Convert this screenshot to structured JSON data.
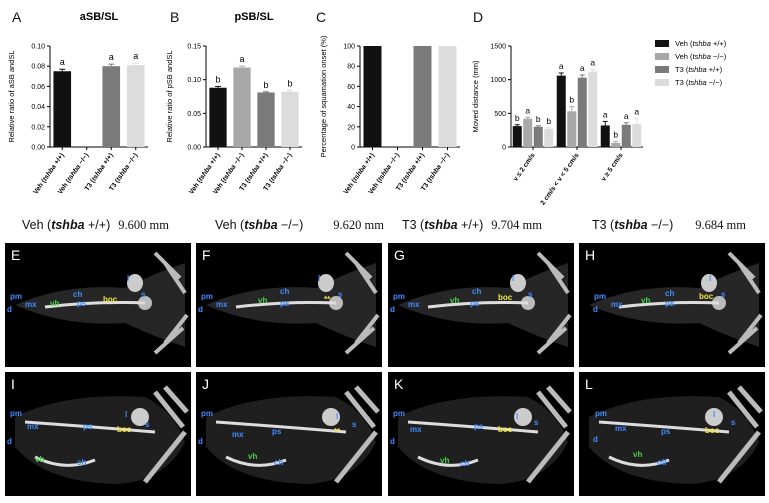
{
  "colors": {
    "veh_wt": "#111111",
    "veh_mut": "#a8a8a8",
    "t3_wt": "#7a7a7a",
    "t3_mut": "#dcdcdc"
  },
  "chart_data": [
    {
      "id": "A",
      "type": "bar",
      "title": "aSB/SL",
      "ylabel": "Relative ratio of aSB andSL",
      "categories": [
        "Veh (tshba +/+)",
        "Veh (tshba −/−)",
        "T3 (tshba +/+)",
        "T3 (tshba −/−)"
      ],
      "values": [
        0.075,
        0,
        0.08,
        0.081
      ],
      "errors": [
        0.002,
        0,
        0.002,
        0.002
      ],
      "letters": [
        "a",
        "",
        "a",
        "a"
      ],
      "ylim": [
        0,
        0.1
      ],
      "yticks": [
        "0.00",
        "0.02",
        "0.04",
        "0.06",
        "0.08",
        "0.10"
      ]
    },
    {
      "id": "B",
      "type": "bar",
      "title": "pSB/SL",
      "ylabel": "Relative ratio of pSB andSL",
      "categories": [
        "Veh (tshba +/+)",
        "Veh (tshba −/−)",
        "T3 (tshba +/+)",
        "T3 (tshba −/−)"
      ],
      "values": [
        0.088,
        0.118,
        0.081,
        0.082
      ],
      "errors": [
        0.002,
        0.002,
        0.001,
        0.002
      ],
      "letters": [
        "b",
        "a",
        "b",
        "b"
      ],
      "ylim": [
        0,
        0.15
      ],
      "yticks": [
        "0.00",
        "0.05",
        "0.10",
        "0.15"
      ]
    },
    {
      "id": "C",
      "type": "bar",
      "title": "",
      "ylabel": "Percentage of squamation onset (%)",
      "categories": [
        "Veh (tshba +/+)",
        "Veh (tshba −/−)",
        "T3 (tshba +/+)",
        "T3 (tshba −/−)"
      ],
      "values": [
        100,
        0,
        100,
        100
      ],
      "errors": [
        0,
        0,
        0,
        0
      ],
      "letters": [
        "",
        "",
        "",
        ""
      ],
      "ylim": [
        0,
        100
      ],
      "yticks": [
        "0",
        "20",
        "40",
        "60",
        "80",
        "100"
      ]
    },
    {
      "id": "D",
      "type": "bar",
      "title": "",
      "ylabel": "Moved distance (mm)",
      "categories": [
        "v ≤ 2 cm/s",
        "2 cm/s < v < 5 cm/s",
        "v ≥ 5 cm/s"
      ],
      "series": [
        {
          "name": "Veh (tshba +/+)",
          "values": [
            310,
            1060,
            320
          ],
          "errors": [
            20,
            40,
            60
          ],
          "letters": [
            "b",
            "a",
            "a"
          ]
        },
        {
          "name": "Veh (tshba −/−)",
          "values": [
            420,
            530,
            60
          ],
          "errors": [
            20,
            70,
            20
          ],
          "letters": [
            "a",
            "b",
            "b"
          ]
        },
        {
          "name": "T3 (tshba +/+)",
          "values": [
            300,
            1030,
            330
          ],
          "errors": [
            15,
            40,
            30
          ],
          "letters": [
            "b",
            "a",
            "a"
          ]
        },
        {
          "name": "T3 (tshba −/−)",
          "values": [
            270,
            1120,
            340
          ],
          "errors": [
            15,
            30,
            80
          ],
          "letters": [
            "b",
            "a",
            "a"
          ]
        }
      ],
      "ylim": [
        0,
        1500
      ],
      "yticks": [
        "0",
        "500",
        "1000",
        "1500"
      ],
      "legend": [
        "Veh (tshba +/+)",
        "Veh (tshba −/−)",
        "T3 (tshba +/+)",
        "T3 (tshba −/−)"
      ]
    }
  ],
  "panel_letters": [
    "A",
    "B",
    "C",
    "D"
  ],
  "measurements": [
    {
      "geno_pre": "Veh (",
      "geno_it": "tshba",
      "geno_post": " +/+)",
      "value": "9.600 mm"
    },
    {
      "geno_pre": "Veh (",
      "geno_it": "tshba",
      "geno_post": " −/−)",
      "value": "9.620 mm"
    },
    {
      "geno_pre": "T3 (",
      "geno_it": "tshba",
      "geno_post": " +/+)",
      "value": "9.704 mm"
    },
    {
      "geno_pre": "T3 (",
      "geno_it": "tshba",
      "geno_post": " −/−)",
      "value": "9.684 mm"
    }
  ],
  "images": [
    {
      "letter": "E",
      "labels": [
        [
          "pm",
          "blue",
          5,
          49
        ],
        [
          "d",
          "blue",
          2,
          62
        ],
        [
          "mx",
          "blue",
          20,
          57
        ],
        [
          "vh",
          "green",
          45,
          56
        ],
        [
          "ch",
          "blue",
          68,
          47
        ],
        [
          "ps",
          "blue",
          72,
          56
        ],
        [
          "boc",
          "yellow",
          98,
          52
        ],
        [
          "l",
          "blue",
          122,
          31
        ],
        [
          "s",
          "blue",
          136,
          47
        ]
      ]
    },
    {
      "letter": "F",
      "labels": [
        [
          "pm",
          "blue",
          5,
          49
        ],
        [
          "d",
          "blue",
          2,
          62
        ],
        [
          "mx",
          "blue",
          20,
          57
        ],
        [
          "vh",
          "green",
          62,
          53
        ],
        [
          "ch",
          "blue",
          84,
          44
        ],
        [
          "ps",
          "blue",
          84,
          56
        ],
        [
          "**",
          "yellow",
          128,
          52
        ],
        [
          "l",
          "blue",
          122,
          31
        ],
        [
          "s",
          "blue",
          142,
          47
        ]
      ]
    },
    {
      "letter": "G",
      "labels": [
        [
          "pm",
          "blue",
          5,
          49
        ],
        [
          "d",
          "blue",
          2,
          62
        ],
        [
          "mx",
          "blue",
          20,
          57
        ],
        [
          "vh",
          "green",
          62,
          53
        ],
        [
          "ch",
          "blue",
          84,
          44
        ],
        [
          "ps",
          "blue",
          82,
          56
        ],
        [
          "boc",
          "yellow",
          110,
          50
        ],
        [
          "l",
          "blue",
          124,
          31
        ],
        [
          "s",
          "blue",
          140,
          47
        ]
      ]
    },
    {
      "letter": "H",
      "labels": [
        [
          "pm",
          "blue",
          15,
          49
        ],
        [
          "d",
          "blue",
          14,
          62
        ],
        [
          "mx",
          "blue",
          32,
          57
        ],
        [
          "vh",
          "green",
          62,
          53
        ],
        [
          "ch",
          "blue",
          86,
          46
        ],
        [
          "ps",
          "blue",
          86,
          56
        ],
        [
          "boc",
          "yellow",
          120,
          49
        ],
        [
          "l",
          "blue",
          130,
          31
        ],
        [
          "s",
          "blue",
          142,
          47
        ]
      ]
    },
    {
      "letter": "I",
      "labels": [
        [
          "pm",
          "blue",
          5,
          37
        ],
        [
          "d",
          "blue",
          2,
          65
        ],
        [
          "mx",
          "blue",
          22,
          50
        ],
        [
          "ps",
          "blue",
          78,
          50
        ],
        [
          "boc",
          "yellow",
          112,
          53
        ],
        [
          "vh",
          "green",
          30,
          83
        ],
        [
          "ch",
          "blue",
          72,
          86
        ],
        [
          "l",
          "blue",
          120,
          38
        ],
        [
          "s",
          "blue",
          140,
          48
        ]
      ]
    },
    {
      "letter": "J",
      "labels": [
        [
          "pm",
          "blue",
          5,
          37
        ],
        [
          "d",
          "blue",
          2,
          65
        ],
        [
          "mx",
          "blue",
          36,
          58
        ],
        [
          "ps",
          "blue",
          76,
          55
        ],
        [
          "**",
          "yellow",
          138,
          55
        ],
        [
          "vh",
          "green",
          52,
          80
        ],
        [
          "ch",
          "blue",
          78,
          86
        ],
        [
          "l",
          "blue",
          140,
          40
        ],
        [
          "s",
          "blue",
          156,
          48
        ]
      ]
    },
    {
      "letter": "K",
      "labels": [
        [
          "pm",
          "blue",
          5,
          37
        ],
        [
          "d",
          "blue",
          2,
          65
        ],
        [
          "mx",
          "blue",
          22,
          53
        ],
        [
          "ps",
          "blue",
          86,
          50
        ],
        [
          "boc",
          "yellow",
          110,
          53
        ],
        [
          "vh",
          "green",
          52,
          84
        ],
        [
          "ch",
          "blue",
          72,
          87
        ],
        [
          "l",
          "blue",
          128,
          40
        ],
        [
          "s",
          "blue",
          146,
          46
        ]
      ]
    },
    {
      "letter": "L",
      "labels": [
        [
          "pm",
          "blue",
          16,
          37
        ],
        [
          "d",
          "blue",
          14,
          63
        ],
        [
          "mx",
          "blue",
          36,
          52
        ],
        [
          "ps",
          "blue",
          82,
          55
        ],
        [
          "boc",
          "yellow",
          126,
          54
        ],
        [
          "vh",
          "green",
          54,
          78
        ],
        [
          "olf",
          "blue",
          78,
          86
        ],
        [
          "l",
          "blue",
          134,
          38
        ],
        [
          "s",
          "blue",
          152,
          46
        ]
      ]
    }
  ]
}
